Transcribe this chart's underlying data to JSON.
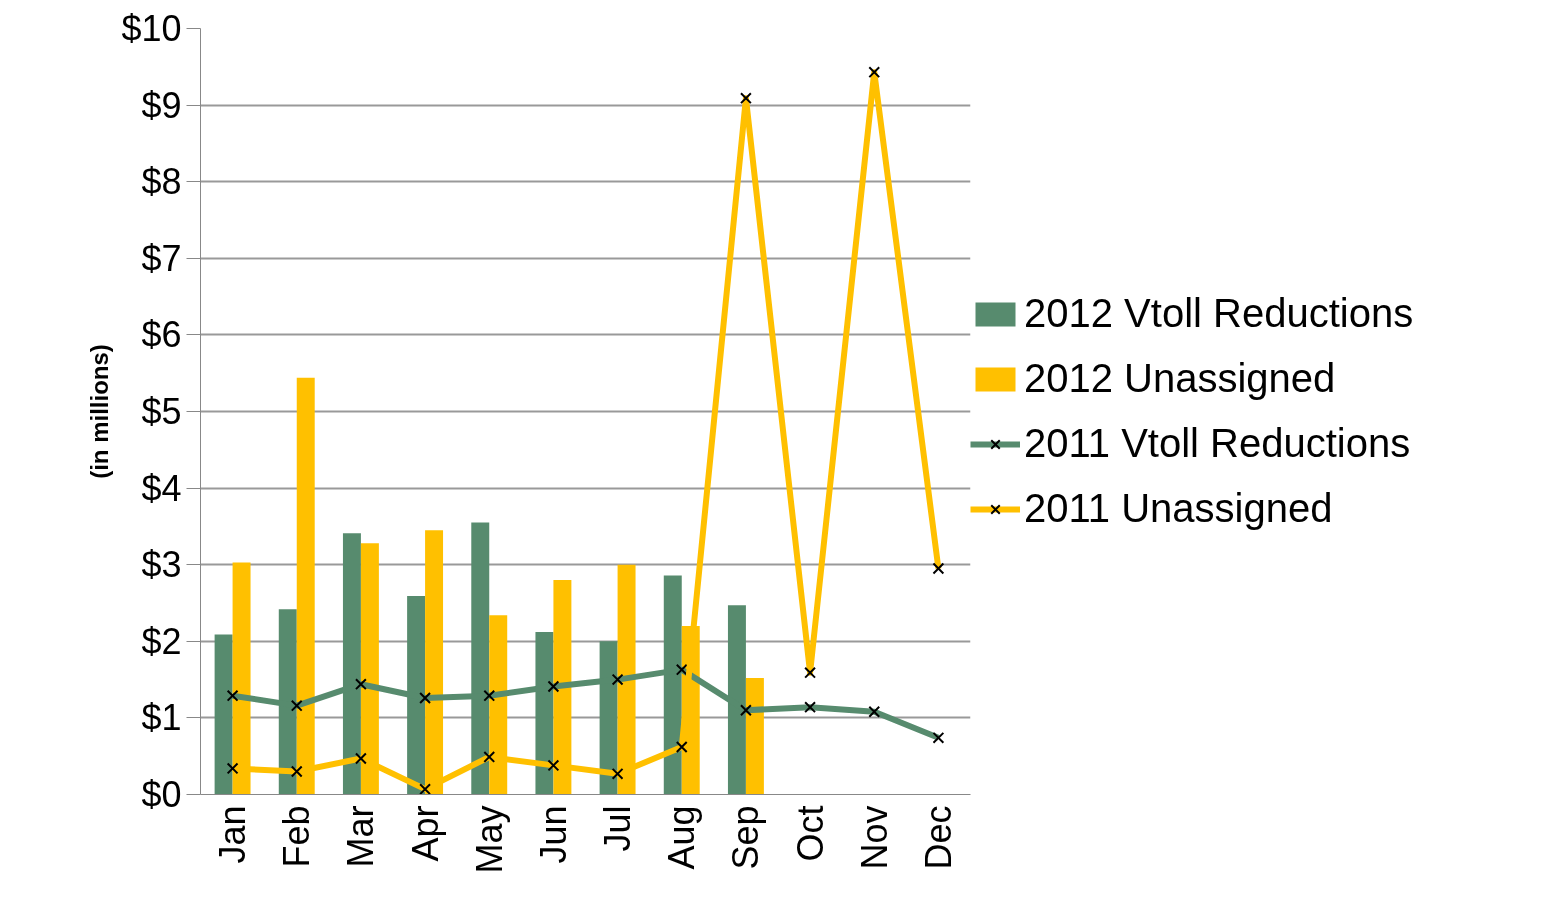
{
  "chart_data": {
    "type": "bar",
    "ylabel": "(in millions)",
    "categories": [
      "Jan",
      "Feb",
      "Mar",
      "Apr",
      "May",
      "Jun",
      "Jul",
      "Aug",
      "Sep",
      "Oct",
      "Nov",
      "Dec"
    ],
    "series": [
      {
        "name": "2012 Vtoll Reductions",
        "color": "#578b6e",
        "values": [
          2.09,
          2.42,
          3.41,
          2.59,
          3.55,
          2.12,
          2.0,
          2.86,
          2.47,
          null,
          null,
          null
        ]
      },
      {
        "name": "2012 Unassigned",
        "color": "#ffc000",
        "values": [
          3.03,
          5.44,
          3.28,
          3.45,
          2.34,
          2.8,
          3.0,
          2.2,
          1.52,
          null,
          null,
          null
        ]
      },
      {
        "name": "2011 Vtoll Reductions",
        "type": "line",
        "marker": "cross",
        "color": "#578b6e",
        "values": [
          1.29,
          1.16,
          1.44,
          1.26,
          1.29,
          1.41,
          1.5,
          1.63,
          1.1,
          1.14,
          1.08,
          0.74
        ]
      },
      {
        "name": "2011 Unassigned",
        "type": "line",
        "marker": "cross",
        "color": "#ffc000",
        "values": [
          0.34,
          0.3,
          0.47,
          0.07,
          0.49,
          0.38,
          0.27,
          0.62,
          9.09,
          1.59,
          9.43,
          2.95
        ]
      }
    ],
    "ylim": [
      0,
      10
    ],
    "yticks": [
      {
        "value": 0,
        "label": "$0"
      },
      {
        "value": 1,
        "label": "$1"
      },
      {
        "value": 2,
        "label": "$2"
      },
      {
        "value": 3,
        "label": "$3"
      },
      {
        "value": 4,
        "label": "$4"
      },
      {
        "value": 5,
        "label": "$5"
      },
      {
        "value": 6,
        "label": "$6"
      },
      {
        "value": 7,
        "label": "$7"
      },
      {
        "value": 8,
        "label": "$8"
      },
      {
        "value": 9,
        "label": "$9"
      },
      {
        "value": 10,
        "label": "$10"
      }
    ],
    "grid": "y",
    "legend": "right"
  }
}
